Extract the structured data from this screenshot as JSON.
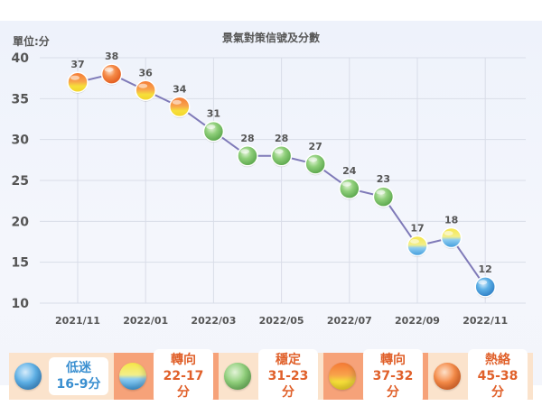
{
  "chart_data": {
    "type": "line",
    "title": "景氣對策信號及分數",
    "unit_label": "單位:分",
    "ylim": [
      10,
      40
    ],
    "yticks": [
      10,
      15,
      20,
      25,
      30,
      35,
      40
    ],
    "x": [
      "2021/11",
      "2021/12",
      "2022/01",
      "2022/02",
      "2022/03",
      "2022/04",
      "2022/05",
      "2022/06",
      "2022/07",
      "2022/08",
      "2022/09",
      "2022/10",
      "2022/11"
    ],
    "x_tick_labels": [
      "2021/11",
      "2022/01",
      "2022/03",
      "2022/05",
      "2022/07",
      "2022/09",
      "2022/11"
    ],
    "values": [
      37,
      38,
      36,
      34,
      31,
      28,
      28,
      27,
      24,
      23,
      17,
      18,
      12
    ],
    "signals": [
      "yellow-red",
      "red",
      "yellow-red",
      "yellow-red",
      "green",
      "green",
      "green",
      "green",
      "green",
      "green",
      "yellow-blue",
      "yellow-blue",
      "blue"
    ],
    "grid": true,
    "line_color": "#7f7ab8"
  },
  "legend": [
    {
      "name": "低迷",
      "range": "16-9分",
      "signal": "blue",
      "bg": "#fbe3cc",
      "text_color": "#3a8fd0"
    },
    {
      "name": "轉向",
      "range": "22-17分",
      "signal": "yellow-blue",
      "bg": "#f6a279",
      "text_color": "#e0602a"
    },
    {
      "name": "穩定",
      "range": "31-23分",
      "signal": "green",
      "bg": "#fbe3cc",
      "text_color": "#e0602a"
    },
    {
      "name": "轉向",
      "range": "37-32分",
      "signal": "yellow-red",
      "bg": "#f6a279",
      "text_color": "#e0602a"
    },
    {
      "name": "熱絡",
      "range": "45-38分",
      "signal": "red",
      "bg": "#fbe3cc",
      "text_color": "#e0602a"
    }
  ],
  "colors": {
    "blue": "#4aa3e0",
    "green": "#7cc26d",
    "red": "#f2762f",
    "yellow": "#f2e236"
  }
}
